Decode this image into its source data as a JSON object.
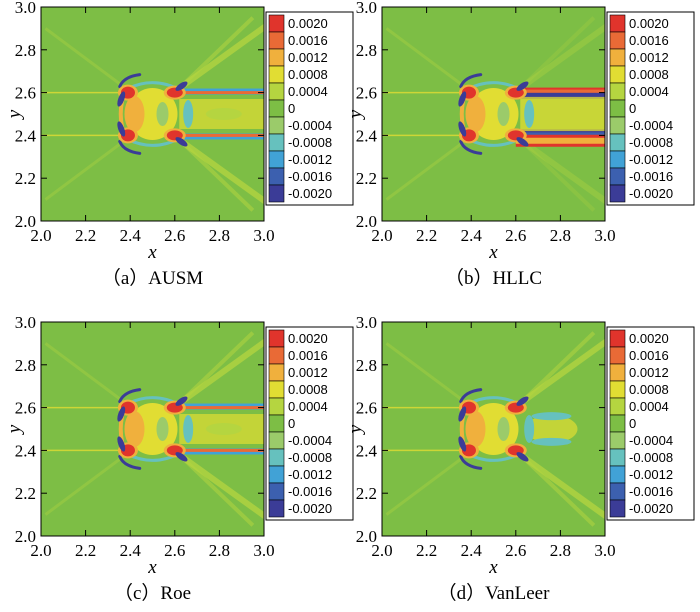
{
  "figure": {
    "colors": {
      "background": "#7DBE45",
      "levels": [
        "#3B3C97",
        "#3C60AF",
        "#41A2D6",
        "#66C1BE",
        "#9BCB6A",
        "#7DBE45",
        "#B5D540",
        "#E1DD33",
        "#F0B03D",
        "#E96A36",
        "#E0342C"
      ]
    }
  },
  "chart_data": [
    {
      "type": "heatmap",
      "panel": "a",
      "title": "（a）AUSM",
      "xlabel": "x",
      "ylabel": "y",
      "xlim": [
        2.0,
        3.0
      ],
      "ylim": [
        2.0,
        3.0
      ],
      "xticks": [
        "2.0",
        "2.2",
        "2.4",
        "2.6",
        "2.8",
        "3.0"
      ],
      "yticks": [
        "2.0",
        "2.2",
        "2.4",
        "2.6",
        "2.8",
        "3.0"
      ],
      "colorbar": [
        "0.0020",
        "0.0016",
        "0.0012",
        "0.0008",
        "0.0004",
        "0",
        "-0.0004",
        "-0.0008",
        "-0.0012",
        "-0.0016",
        "-0.0020"
      ]
    },
    {
      "type": "heatmap",
      "panel": "b",
      "title": "（b）HLLC",
      "xlabel": "x",
      "ylabel": "y",
      "xlim": [
        2.0,
        3.0
      ],
      "ylim": [
        2.0,
        3.0
      ],
      "xticks": [
        "2.0",
        "2.2",
        "2.4",
        "2.6",
        "2.8",
        "3.0"
      ],
      "yticks": [
        "2.0",
        "2.2",
        "2.4",
        "2.6",
        "2.8",
        "3.0"
      ],
      "colorbar": [
        "0.0020",
        "0.0016",
        "0.0012",
        "0.0008",
        "0.0004",
        "0",
        "-0.0004",
        "-0.0008",
        "-0.0012",
        "-0.0016",
        "-0.0020"
      ]
    },
    {
      "type": "heatmap",
      "panel": "c",
      "title": "（c）Roe",
      "xlabel": "x",
      "ylabel": "y",
      "xlim": [
        2.0,
        3.0
      ],
      "ylim": [
        2.0,
        3.0
      ],
      "xticks": [
        "2.0",
        "2.2",
        "2.4",
        "2.6",
        "2.8",
        "3.0"
      ],
      "yticks": [
        "2.0",
        "2.2",
        "2.4",
        "2.6",
        "2.8",
        "3.0"
      ],
      "colorbar": [
        "0.0020",
        "0.0016",
        "0.0012",
        "0.0008",
        "0.0004",
        "0",
        "-0.0004",
        "-0.0008",
        "-0.0012",
        "-0.0016",
        "-0.0020"
      ]
    },
    {
      "type": "heatmap",
      "panel": "d",
      "title": "（d）VanLeer",
      "xlabel": "x",
      "ylabel": "y",
      "xlim": [
        2.0,
        3.0
      ],
      "ylim": [
        2.0,
        3.0
      ],
      "xticks": [
        "2.0",
        "2.2",
        "2.4",
        "2.6",
        "2.8",
        "3.0"
      ],
      "yticks": [
        "2.0",
        "2.2",
        "2.4",
        "2.6",
        "2.8",
        "3.0"
      ],
      "colorbar": [
        "0.0020",
        "0.0016",
        "0.0012",
        "0.0008",
        "0.0004",
        "0",
        "-0.0004",
        "-0.0008",
        "-0.0012",
        "-0.0016",
        "-0.0020"
      ]
    }
  ]
}
